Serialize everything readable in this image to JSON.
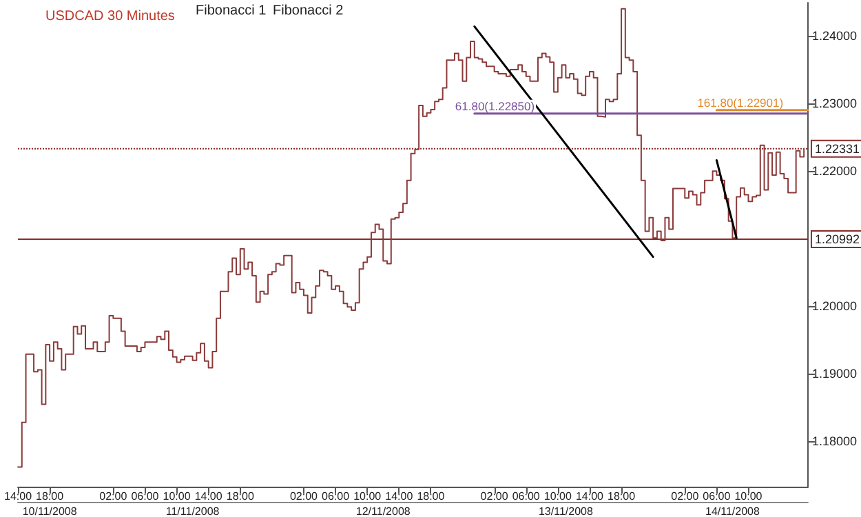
{
  "chart_data": {
    "type": "step",
    "title": "USDCAD 30 Minutes",
    "annotations": [
      "Fibonacci 1",
      "Fibonacci 2"
    ],
    "xlim": [
      "2008-11-10T14:00",
      "2008-11-14T17:30"
    ],
    "xticks": [
      {
        "value": "2008-11-10T14:00",
        "label": "14:00"
      },
      {
        "value": "2008-11-10T18:00",
        "label": "18:00"
      },
      {
        "value": "2008-11-11T02:00",
        "label": "02:00"
      },
      {
        "value": "2008-11-11T06:00",
        "label": "06:00"
      },
      {
        "value": "2008-11-11T10:00",
        "label": "10:00"
      },
      {
        "value": "2008-11-11T14:00",
        "label": "14:00"
      },
      {
        "value": "2008-11-11T18:00",
        "label": "18:00"
      },
      {
        "value": "2008-11-12T02:00",
        "label": "02:00"
      },
      {
        "value": "2008-11-12T06:00",
        "label": "06:00"
      },
      {
        "value": "2008-11-12T10:00",
        "label": "10:00"
      },
      {
        "value": "2008-11-12T14:00",
        "label": "14:00"
      },
      {
        "value": "2008-11-12T18:00",
        "label": "18:00"
      },
      {
        "value": "2008-11-13T02:00",
        "label": "02:00"
      },
      {
        "value": "2008-11-13T06:00",
        "label": "06:00"
      },
      {
        "value": "2008-11-13T10:00",
        "label": "10:00"
      },
      {
        "value": "2008-11-13T14:00",
        "label": "14:00"
      },
      {
        "value": "2008-11-13T18:00",
        "label": "18:00"
      },
      {
        "value": "2008-11-14T02:00",
        "label": "02:00"
      },
      {
        "value": "2008-11-14T06:00",
        "label": "06:00"
      },
      {
        "value": "2008-11-14T10:00",
        "label": "10:00"
      }
    ],
    "x2lim": [
      "2008-11-10T14:00",
      "2008-11-14T17:30"
    ],
    "x2ticks": [
      {
        "value": "2008-11-10T18:00",
        "label": "10/11/2008"
      },
      {
        "value": "2008-11-11T12:00",
        "label": "11/11/2008"
      },
      {
        "value": "2008-11-12T12:00",
        "label": "12/11/2008"
      },
      {
        "value": "2008-11-13T11:00",
        "label": "13/11/2008"
      },
      {
        "value": "2008-11-14T08:00",
        "label": "14/11/2008"
      }
    ],
    "ylim": [
      1.1733,
      1.2449
    ],
    "yticks": [
      {
        "value": 1.18,
        "label": "1.18000"
      },
      {
        "value": 1.19,
        "label": "1.19000"
      },
      {
        "value": 1.2,
        "label": "1.20000"
      },
      {
        "value": 1.22,
        "label": "1.22000"
      },
      {
        "value": 1.23,
        "label": "1.23000"
      },
      {
        "value": 1.24,
        "label": "1.24000"
      }
    ],
    "ref_lines": [
      {
        "axis": "y",
        "value": 1.22331,
        "label": "1.22331",
        "color": "#8b2a2a",
        "line_style": "dotted"
      },
      {
        "axis": "y",
        "value": 1.20992,
        "label": "1.20992",
        "color": "#8b2a2a",
        "line_style": "solid"
      }
    ],
    "grid": false,
    "series": [
      {
        "color": "#8b3a3a",
        "x": [
          "2008-11-10T14:00",
          "2008-11-10T14:30",
          "2008-11-10T15:00",
          "2008-11-10T16:00",
          "2008-11-10T16:30",
          "2008-11-10T17:00",
          "2008-11-10T17:30",
          "2008-11-10T18:00",
          "2008-11-10T18:30",
          "2008-11-10T19:00",
          "2008-11-10T19:30",
          "2008-11-10T20:00",
          "2008-11-10T21:00",
          "2008-11-10T21:30",
          "2008-11-10T22:00",
          "2008-11-10T22:30",
          "2008-11-10T23:30",
          "2008-11-11T00:00",
          "2008-11-11T01:00",
          "2008-11-11T01:30",
          "2008-11-11T02:00",
          "2008-11-11T03:00",
          "2008-11-11T03:30",
          "2008-11-11T05:00",
          "2008-11-11T05:30",
          "2008-11-11T06:00",
          "2008-11-11T07:30",
          "2008-11-11T08:00",
          "2008-11-11T08:30",
          "2008-11-11T09:00",
          "2008-11-11T09:30",
          "2008-11-11T10:00",
          "2008-11-11T10:30",
          "2008-11-11T11:00",
          "2008-11-11T12:00",
          "2008-11-11T12:30",
          "2008-11-11T13:00",
          "2008-11-11T13:30",
          "2008-11-11T14:00",
          "2008-11-11T14:30",
          "2008-11-11T15:00",
          "2008-11-11T15:30",
          "2008-11-11T16:30",
          "2008-11-11T17:00",
          "2008-11-11T17:30",
          "2008-11-11T18:00",
          "2008-11-11T18:30",
          "2008-11-11T19:00",
          "2008-11-11T19:30",
          "2008-11-11T20:00",
          "2008-11-11T20:30",
          "2008-11-11T21:00",
          "2008-11-11T21:30",
          "2008-11-11T22:00",
          "2008-11-11T22:30",
          "2008-11-11T23:00",
          "2008-11-11T23:30",
          "2008-11-12T00:30",
          "2008-11-12T01:00",
          "2008-11-12T01:30",
          "2008-11-12T02:00",
          "2008-11-12T02:30",
          "2008-11-12T03:00",
          "2008-11-12T03:30",
          "2008-11-12T04:00",
          "2008-11-12T04:30",
          "2008-11-12T05:00",
          "2008-11-12T05:30",
          "2008-11-12T06:00",
          "2008-11-12T06:30",
          "2008-11-12T07:00",
          "2008-11-12T07:30",
          "2008-11-12T08:00",
          "2008-11-12T08:30",
          "2008-11-12T09:00",
          "2008-11-12T09:30",
          "2008-11-12T10:00",
          "2008-11-12T10:30",
          "2008-11-12T11:00",
          "2008-11-12T11:30",
          "2008-11-12T12:00",
          "2008-11-12T12:30",
          "2008-11-12T13:00",
          "2008-11-12T13:30",
          "2008-11-12T14:00",
          "2008-11-12T14:30",
          "2008-11-12T15:00",
          "2008-11-12T15:30",
          "2008-11-12T16:00",
          "2008-11-12T16:30",
          "2008-11-12T17:00",
          "2008-11-12T17:30",
          "2008-11-12T18:00",
          "2008-11-12T18:30",
          "2008-11-12T19:00",
          "2008-11-12T19:30",
          "2008-11-12T20:00",
          "2008-11-12T21:00",
          "2008-11-12T21:30",
          "2008-11-12T22:00",
          "2008-11-12T22:30",
          "2008-11-12T23:00",
          "2008-11-12T23:30",
          "2008-11-13T00:00",
          "2008-11-13T00:30",
          "2008-11-13T01:00",
          "2008-11-13T02:00",
          "2008-11-13T02:30",
          "2008-11-13T03:30",
          "2008-11-13T04:00",
          "2008-11-13T05:00",
          "2008-11-13T05:30",
          "2008-11-13T06:00",
          "2008-11-13T06:30",
          "2008-11-13T07:30",
          "2008-11-13T08:00",
          "2008-11-13T08:30",
          "2008-11-13T09:00",
          "2008-11-13T09:30",
          "2008-11-13T10:00",
          "2008-11-13T10:30",
          "2008-11-13T11:00",
          "2008-11-13T11:30",
          "2008-11-13T12:00",
          "2008-11-13T12:30",
          "2008-11-13T13:00",
          "2008-11-13T13:30",
          "2008-11-13T14:00",
          "2008-11-13T14:30",
          "2008-11-13T15:00",
          "2008-11-13T15:30",
          "2008-11-13T16:00",
          "2008-11-13T16:30",
          "2008-11-13T17:00",
          "2008-11-13T17:30",
          "2008-11-13T18:00",
          "2008-11-13T18:30",
          "2008-11-13T19:00",
          "2008-11-13T19:30",
          "2008-11-13T20:00",
          "2008-11-13T20:30",
          "2008-11-13T21:00",
          "2008-11-13T21:30",
          "2008-11-13T22:00",
          "2008-11-13T22:30",
          "2008-11-13T23:00",
          "2008-11-13T23:30",
          "2008-11-14T00:00",
          "2008-11-14T00:30",
          "2008-11-14T02:00",
          "2008-11-14T02:30",
          "2008-11-14T03:00",
          "2008-11-14T03:30",
          "2008-11-14T04:00",
          "2008-11-14T04:30",
          "2008-11-14T05:30",
          "2008-11-14T06:00",
          "2008-11-14T06:30",
          "2008-11-14T07:00",
          "2008-11-14T07:30",
          "2008-11-14T08:00",
          "2008-11-14T08:30",
          "2008-11-14T09:00",
          "2008-11-14T09:30",
          "2008-11-14T10:00",
          "2008-11-14T10:30",
          "2008-11-14T11:00",
          "2008-11-14T11:30",
          "2008-11-14T12:00",
          "2008-11-14T12:30",
          "2008-11-14T13:00",
          "2008-11-14T13:30",
          "2008-11-14T14:00",
          "2008-11-14T14:30",
          "2008-11-14T15:00",
          "2008-11-14T16:00",
          "2008-11-14T16:30",
          "2008-11-14T17:00"
        ],
        "values": [
          1.1762,
          1.1828,
          1.1929,
          1.1903,
          1.1906,
          1.1855,
          1.1943,
          1.1919,
          1.1947,
          1.1937,
          1.1906,
          1.1929,
          1.197,
          1.1959,
          1.1971,
          1.1937,
          1.1947,
          1.1933,
          1.1947,
          1.1986,
          1.1982,
          1.1963,
          1.1941,
          1.1933,
          1.1939,
          1.1947,
          1.1955,
          1.1951,
          1.1963,
          1.1935,
          1.1925,
          1.1917,
          1.1921,
          1.1926,
          1.192,
          1.1931,
          1.1945,
          1.1919,
          1.1909,
          1.1933,
          1.1982,
          1.2022,
          1.2051,
          1.2071,
          1.2047,
          1.2085,
          1.2055,
          1.2065,
          1.2045,
          1.2006,
          1.2022,
          1.2018,
          1.2047,
          1.2051,
          1.2063,
          1.2061,
          1.2075,
          1.202,
          1.2035,
          1.2025,
          1.2016,
          1.199,
          1.2013,
          1.203,
          1.2053,
          1.2051,
          1.2045,
          1.2025,
          1.203,
          1.2022,
          1.2004,
          1.1999,
          1.1994,
          1.2005,
          1.2055,
          1.2065,
          1.2073,
          1.2109,
          1.2121,
          1.2114,
          1.2067,
          1.2063,
          1.2129,
          1.2131,
          1.2139,
          1.2152,
          1.2186,
          1.2226,
          1.2232,
          1.2297,
          1.2281,
          1.2286,
          1.2291,
          1.2303,
          1.2306,
          1.2323,
          1.2364,
          1.2374,
          1.2364,
          1.2333,
          1.2368,
          1.2392,
          1.2368,
          1.2366,
          1.2361,
          1.2355,
          1.2347,
          1.2344,
          1.234,
          1.235,
          1.2357,
          1.2347,
          1.234,
          1.2333,
          1.2368,
          1.2374,
          1.2369,
          1.2361,
          1.2317,
          1.2338,
          1.2357,
          1.2338,
          1.2344,
          1.2336,
          1.2315,
          1.2312,
          1.234,
          1.2347,
          1.2338,
          1.2281,
          1.228,
          1.2306,
          1.2303,
          1.2306,
          1.2344,
          1.244,
          1.2368,
          1.2364,
          1.2347,
          1.2253,
          1.2186,
          1.2111,
          1.2131,
          1.2101,
          1.2111,
          1.2097,
          1.2131,
          1.2114,
          1.2174,
          1.216,
          1.217,
          1.2165,
          1.215,
          1.2168,
          1.2186,
          1.22,
          1.2194,
          1.2186,
          1.2159,
          1.2126,
          1.2101,
          1.2162,
          1.2175,
          1.2165,
          1.2155,
          1.2162,
          1.2164,
          1.2238,
          1.2172,
          1.2227,
          1.2194,
          1.2228,
          1.2196,
          1.2189,
          1.2168,
          1.223,
          1.2221,
          1.2233
        ]
      },
      {
        "type": "line",
        "name": "61.80(1.22850)",
        "color": "#7b4f9a",
        "x": [
          "2008-11-12T23:30",
          "2008-11-14T17:30"
        ],
        "values": [
          1.2285,
          1.2285
        ]
      },
      {
        "type": "line",
        "name": "161.80(1.22901)",
        "color": "#e08a2c",
        "x": [
          "2008-11-14T06:00",
          "2008-11-14T17:30"
        ],
        "values": [
          1.22901,
          1.22901
        ]
      },
      {
        "type": "line",
        "color": "#000000",
        "x": [
          "2008-11-12T23:30",
          "2008-11-13T22:00"
        ],
        "values": [
          1.2414,
          1.2073
        ]
      },
      {
        "type": "line",
        "color": "#000000",
        "x": [
          "2008-11-14T06:00",
          "2008-11-14T08:30"
        ],
        "values": [
          1.2216,
          1.2101
        ]
      }
    ]
  }
}
